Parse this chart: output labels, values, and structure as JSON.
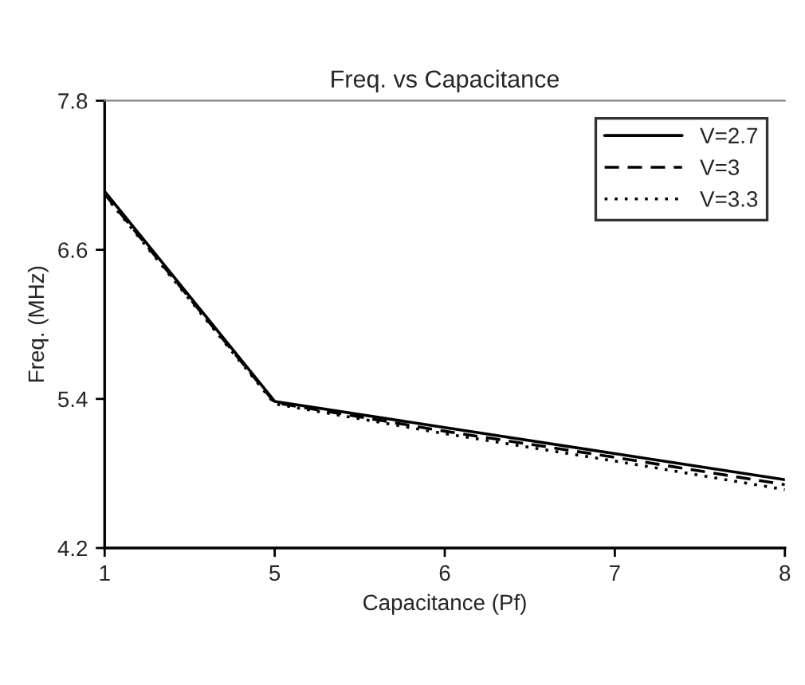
{
  "chart_data": {
    "type": "line",
    "title": "Freq. vs Capacitance",
    "xlabel": "Capacitance (Pf)",
    "ylabel": "Freq. (MHz)",
    "categories": [
      "1",
      "5",
      "6",
      "7",
      "8"
    ],
    "series": [
      {
        "name": "V=2.7",
        "color": "#000000",
        "line_style": "solid",
        "values": [
          7.07,
          5.38,
          5.17,
          4.96,
          4.75
        ]
      },
      {
        "name": "V=3",
        "color": "#000000",
        "line_style": "dashed",
        "values": [
          7.05,
          5.37,
          5.14,
          4.93,
          4.71
        ]
      },
      {
        "name": "V=3.3",
        "color": "#000000",
        "line_style": "dotted",
        "values": [
          7.04,
          5.36,
          5.12,
          4.9,
          4.67
        ]
      }
    ],
    "ylim": [
      4.2,
      7.8
    ],
    "yticks": [
      4.2,
      5.4,
      6.6,
      7.8
    ],
    "grid": false,
    "legend": "top right",
    "marker": "none"
  }
}
